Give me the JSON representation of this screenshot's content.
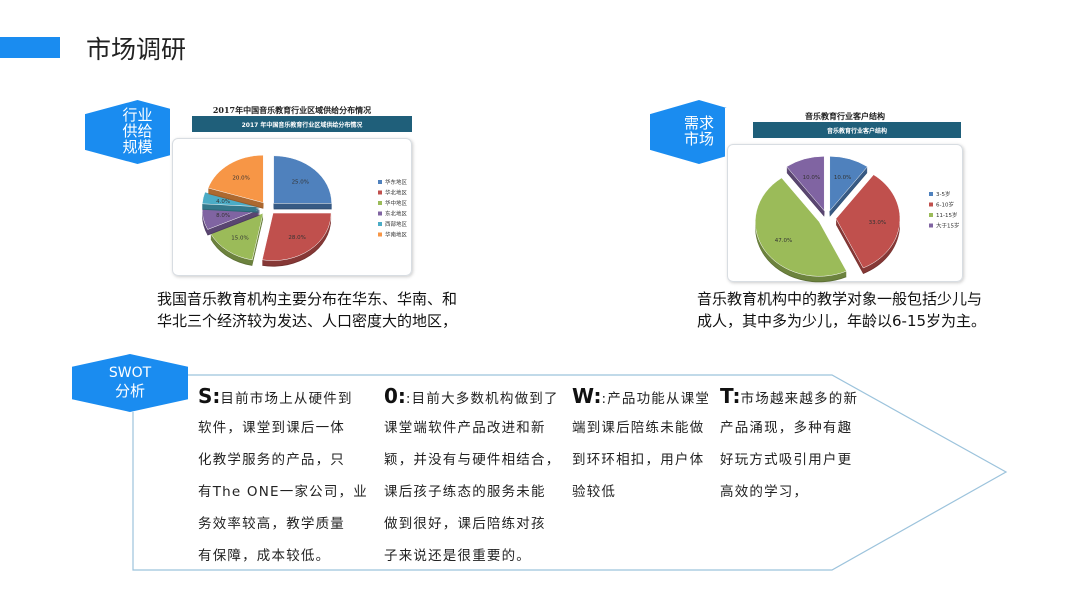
{
  "header": {
    "title": "市场调研"
  },
  "badges": {
    "supply": [
      "行业",
      "供给",
      "规模"
    ],
    "demand": [
      "需求",
      "市场"
    ],
    "swot": [
      "SWOT",
      "分析"
    ]
  },
  "captions": {
    "supply": [
      "我国音乐教育机构主要分布在华东、华南、和",
      "华北三个经济较为发达、人口密度大的地区，"
    ],
    "demand": [
      "音乐教育机构中的教学对象一般包括少儿与",
      "成人，其中多为少儿，年龄以6-15岁为主。"
    ]
  },
  "swot": [
    {
      "letter": "S:",
      "lines": [
        "目前市场上从硬件到",
        "软件，课堂到课后一体",
        "化教学服务的产品，只",
        "有The ONE一家公司，业",
        "务效率较高，教学质量",
        "有保障，成本较低。"
      ]
    },
    {
      "letter": "0:",
      "lines": [
        ":目前大多数机构做到了",
        "课堂端软件产品改进和新",
        "颖，并没有与硬件相结合，",
        "课后孩子练态的服务未能",
        "做到很好，课后陪练对孩",
        "子来说还是很重要的。"
      ]
    },
    {
      "letter": "W:",
      "lines": [
        ":产品功能从课堂",
        "端到课后陪练未能做",
        "到环环相扣，用户体",
        "验较低"
      ]
    },
    {
      "letter": "T:",
      "lines": [
        "市场越来越多的新",
        "产品涌现，多种有趣",
        "好玩方式吸引用户更",
        "高效的学习，"
      ]
    }
  ],
  "colors": {
    "accent": "#1a8cf0",
    "banner": "#1f5f7a",
    "outline": "#9cc3dc"
  },
  "chart_data": [
    {
      "type": "pie",
      "title": "2017年中国音乐教育行业区域供给分布情况",
      "banner": "2017 年中国音乐教育行业区域供给分布情况",
      "categories": [
        "华东地区",
        "华北地区",
        "华中地区",
        "东北地区",
        "西部地区",
        "华南地区"
      ],
      "values": [
        25.0,
        28.0,
        15.0,
        8.0,
        4.0,
        20.0
      ],
      "labels": [
        "25.0%",
        "28.0%",
        "15.0%",
        "8.0%",
        "4.0%",
        "20.0%"
      ],
      "colors": [
        "#4f81bd",
        "#c0504d",
        "#9bbb59",
        "#8064a2",
        "#4bacc6",
        "#f79646"
      ],
      "legend": "right"
    },
    {
      "type": "pie",
      "title": "音乐教育行业客户结构",
      "banner": "音乐教育行业客户结构",
      "categories": [
        "3-5岁",
        "6-10岁",
        "11-15岁",
        "大于15岁"
      ],
      "values": [
        10.0,
        33.0,
        47.0,
        10.0
      ],
      "labels": [
        "10.0%",
        "33.0%",
        "47.0%",
        "10.0%"
      ],
      "colors": [
        "#4f81bd",
        "#c0504d",
        "#9bbb59",
        "#8064a2"
      ],
      "legend": "right"
    }
  ]
}
